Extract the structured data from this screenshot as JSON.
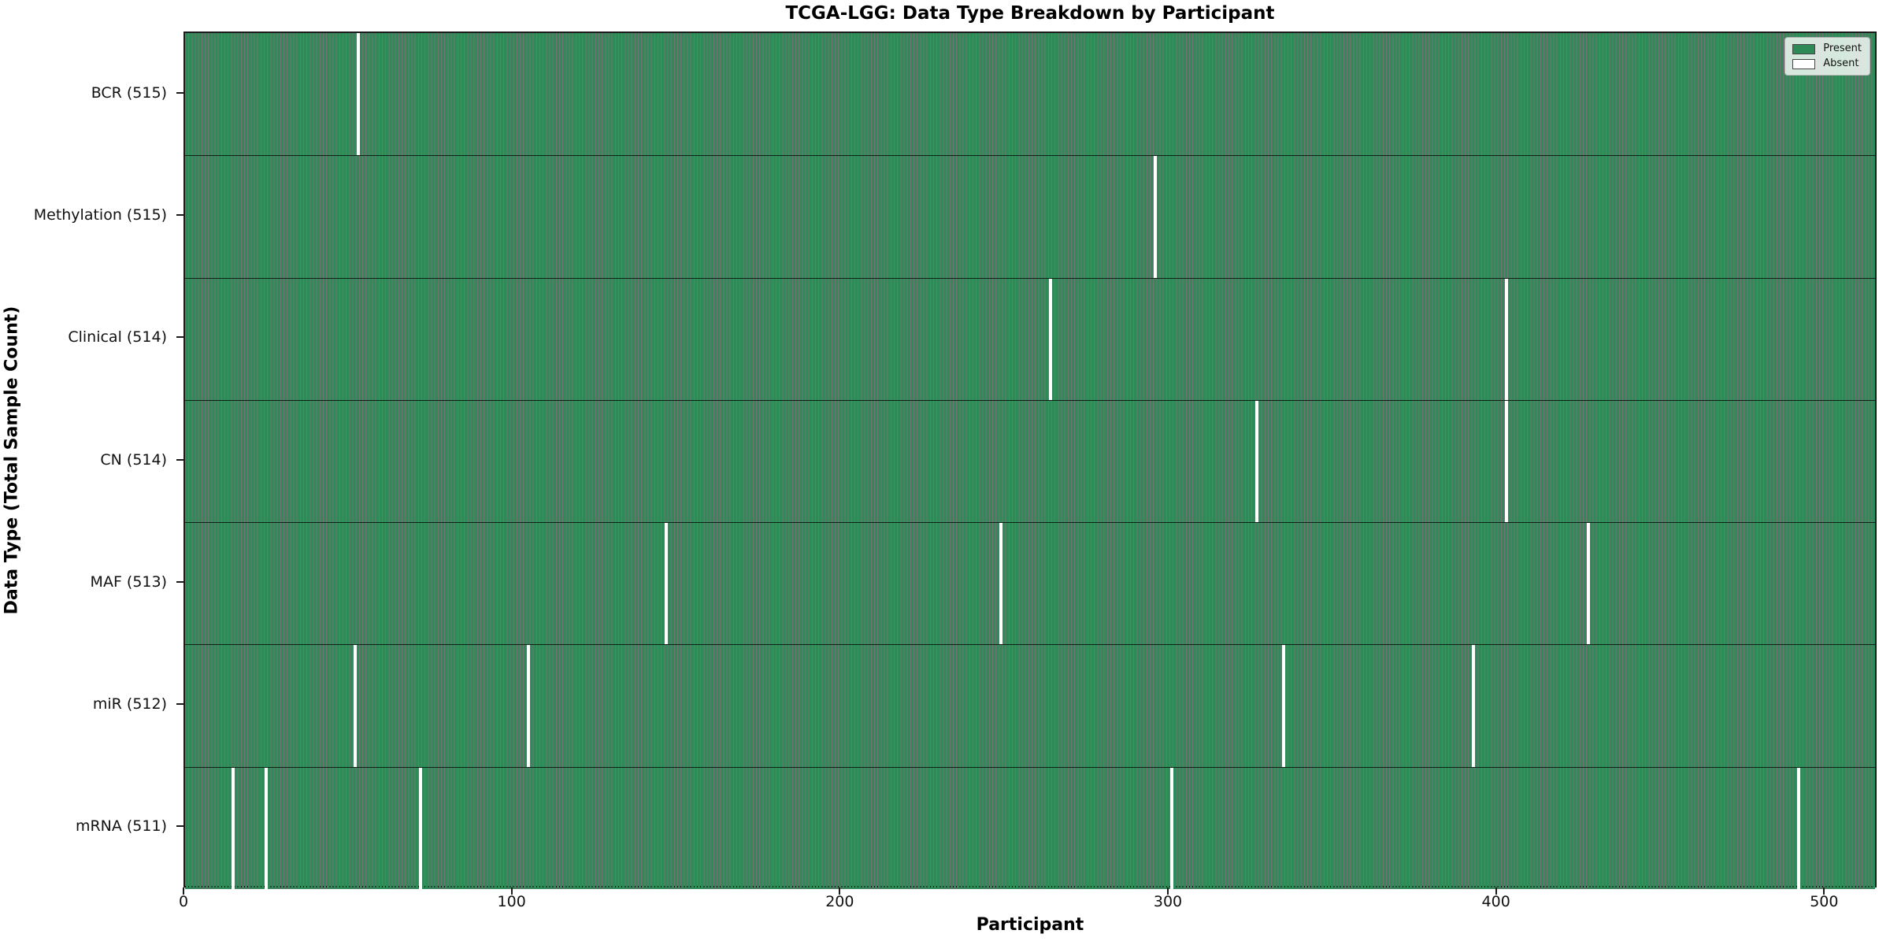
{
  "figure": {
    "title": "TCGA-LGG: Data Type Breakdown by Participant",
    "xlabel": "Participant",
    "ylabel": "Data Type (Total Sample Count)"
  },
  "legend": {
    "position": "upper-right",
    "items": [
      {
        "label": "Present",
        "color": "#2e8b57"
      },
      {
        "label": "Absent",
        "color": "#ffffff"
      }
    ]
  },
  "chart_data": {
    "type": "heatmap",
    "title": "TCGA-LGG: Data Type Breakdown by Participant",
    "xlabel": "Participant",
    "ylabel": "Data Type (Total Sample Count)",
    "x_ticks": [
      0,
      100,
      200,
      300,
      400,
      500
    ],
    "xlim": [
      0,
      516
    ],
    "n_participants": 516,
    "present_color": "#2e8b57",
    "absent_color": "#ffffff",
    "bar_edge_color": "rgba(0,0,0,0.55)",
    "grid": false,
    "legend_entries": [
      "Present",
      "Absent"
    ],
    "legend_position": "upper right",
    "rows": [
      {
        "label": "BCR (515)",
        "data_type": "BCR",
        "present_count": 515,
        "absent_participants": [
          52
        ]
      },
      {
        "label": "Methylation (515)",
        "data_type": "Methylation",
        "present_count": 515,
        "absent_participants": [
          295
        ]
      },
      {
        "label": "Clinical (514)",
        "data_type": "Clinical",
        "present_count": 514,
        "absent_participants": [
          263,
          402
        ]
      },
      {
        "label": "CN (514)",
        "data_type": "CN",
        "present_count": 514,
        "absent_participants": [
          326,
          402
        ]
      },
      {
        "label": "MAF (513)",
        "data_type": "MAF",
        "present_count": 513,
        "absent_participants": [
          146,
          248,
          427
        ]
      },
      {
        "label": "miR (512)",
        "data_type": "miR",
        "present_count": 512,
        "absent_participants": [
          51,
          104,
          334,
          392
        ]
      },
      {
        "label": "mRNA (511)",
        "data_type": "mRNA",
        "present_count": 511,
        "absent_participants": [
          14,
          24,
          71,
          300,
          491
        ]
      }
    ]
  }
}
